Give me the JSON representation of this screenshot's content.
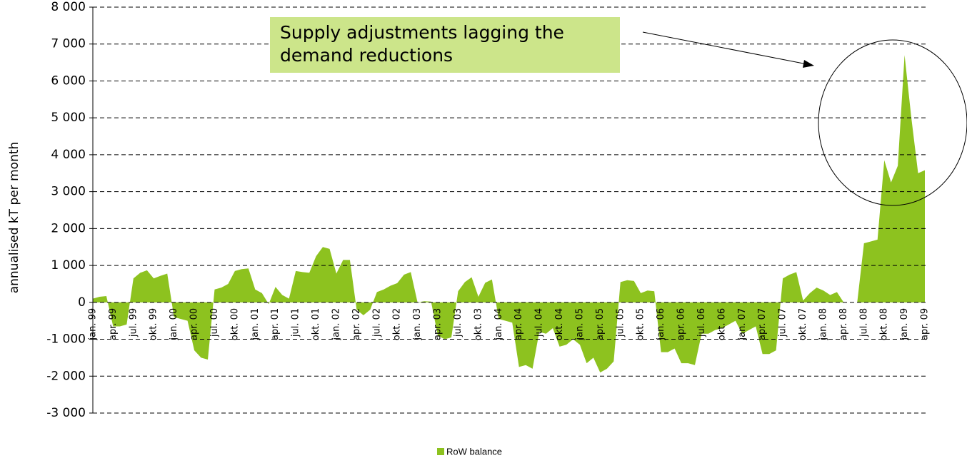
{
  "chart_data": {
    "type": "area",
    "y_label": "annualised kT per month",
    "annotation": "Supply adjustments lagging the demand reductions",
    "categories": [
      "jan. 99",
      null,
      null,
      "apr. 99",
      null,
      null,
      "jul. 99",
      null,
      null,
      "okt. 99",
      null,
      null,
      "jan. 00",
      null,
      null,
      "apr. 00",
      null,
      null,
      "jul. 00",
      null,
      null,
      "okt. 00",
      null,
      null,
      "jan. 01",
      null,
      null,
      "apr. 01",
      null,
      null,
      "jul. 01",
      null,
      null,
      "okt. 01",
      null,
      null,
      "jan. 02",
      null,
      null,
      "apr. 02",
      null,
      null,
      "jul. 02",
      null,
      null,
      "okt. 02",
      null,
      null,
      "jan. 03",
      null,
      null,
      "apr. 03",
      null,
      null,
      "jul. 03",
      null,
      null,
      "okt. 03",
      null,
      null,
      "jan. 04",
      null,
      null,
      "apr. 04",
      null,
      null,
      "jul. 04",
      null,
      null,
      "okt. 04",
      null,
      null,
      "jan. 05",
      null,
      null,
      "apr. 05",
      null,
      null,
      "jul. 05",
      null,
      null,
      "okt. 05",
      null,
      null,
      "jan. 06",
      null,
      null,
      "apr. 06",
      null,
      null,
      "jul. 06",
      null,
      null,
      "okt. 06",
      null,
      null,
      "jan. 07",
      null,
      null,
      "apr. 07",
      null,
      null,
      "jul. 07",
      null,
      null,
      "okt. 07",
      null,
      null,
      "jan. 08",
      null,
      null,
      "apr. 08",
      null,
      null,
      "jul. 08",
      null,
      null,
      "okt. 08",
      null,
      null,
      "jan. 09",
      null,
      null,
      "apr. 09"
    ],
    "series": [
      {
        "name": "RoW balance",
        "color": "#8dc21f",
        "values": [
          100,
          150,
          170,
          -650,
          -650,
          -600,
          650,
          800,
          870,
          650,
          720,
          780,
          -400,
          -450,
          -500,
          -1300,
          -1500,
          -1550,
          350,
          400,
          500,
          850,
          900,
          920,
          350,
          250,
          -50,
          420,
          200,
          100,
          850,
          820,
          800,
          1250,
          1500,
          1450,
          780,
          1150,
          1150,
          -200,
          -350,
          -200,
          280,
          350,
          450,
          520,
          750,
          820,
          0,
          30,
          20,
          -900,
          -1000,
          -950,
          300,
          550,
          680,
          150,
          530,
          620,
          -450,
          -500,
          -550,
          -1750,
          -1700,
          -1800,
          -800,
          -850,
          -700,
          -1200,
          -1150,
          -1000,
          -1150,
          -1650,
          -1500,
          -1900,
          -1800,
          -1600,
          550,
          600,
          580,
          250,
          320,
          300,
          -1350,
          -1350,
          -1250,
          -1650,
          -1650,
          -1700,
          -850,
          -850,
          -750,
          -700,
          -600,
          -500,
          -850,
          -750,
          -650,
          -1400,
          -1400,
          -1300,
          650,
          750,
          820,
          50,
          250,
          400,
          320,
          200,
          280,
          0,
          0,
          0,
          1600,
          1650,
          1700,
          3850,
          3250,
          3700,
          6700,
          5000,
          3500,
          3580
        ]
      }
    ],
    "ylim": [
      -3000,
      8000
    ],
    "yticks": [
      {
        "value": -3000,
        "label": "-3 000"
      },
      {
        "value": -2000,
        "label": "-2 000"
      },
      {
        "value": -1000,
        "label": "-1 000"
      },
      0,
      {
        "value": 1000,
        "label": "1 000"
      },
      {
        "value": 2000,
        "label": "2 000"
      },
      {
        "value": 3000,
        "label": "3 000"
      },
      {
        "value": 4000,
        "label": "4 000"
      },
      {
        "value": 5000,
        "label": "5 000"
      },
      {
        "value": 6000,
        "label": "6 000"
      },
      {
        "value": 7000,
        "label": "7 000"
      },
      {
        "value": 8000,
        "label": "8 000"
      }
    ],
    "grid": true,
    "legend": "bottom"
  }
}
